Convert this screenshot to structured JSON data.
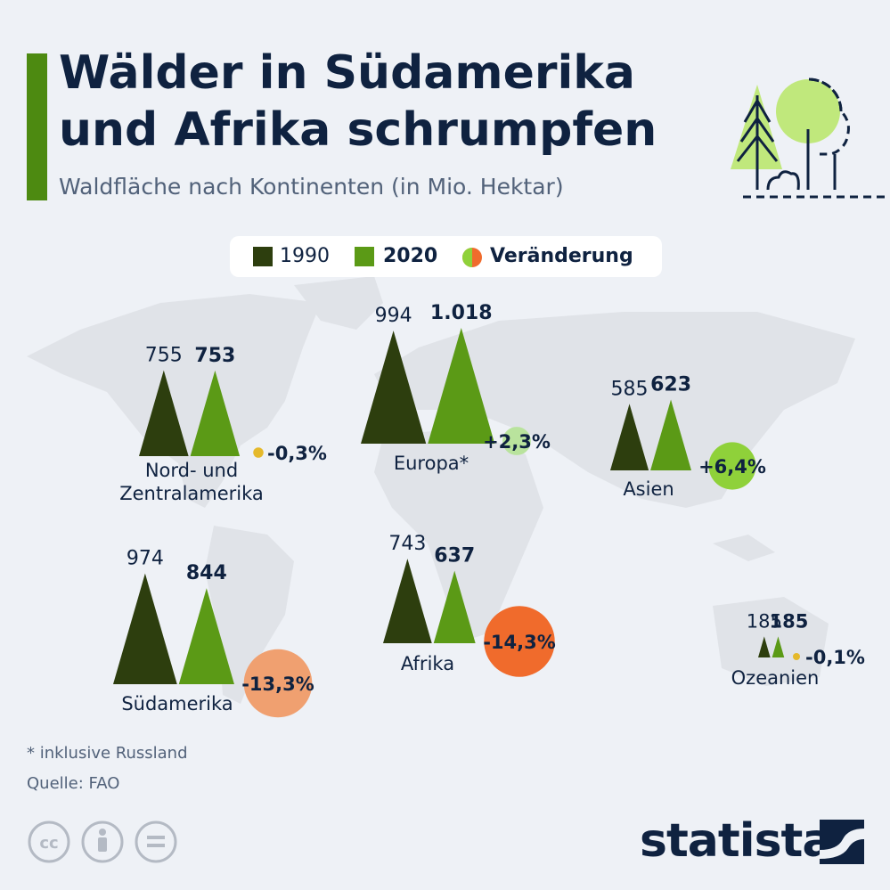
{
  "header": {
    "title": "Wälder in Südamerika und Afrika schrumpfen",
    "subtitle": "Waldfläche nach Kontinenten (in Mio. Hektar)"
  },
  "legend": {
    "label_1990": "1990",
    "label_2020": "2020",
    "label_change": "Veränderung"
  },
  "colors": {
    "series_1990": "#2d3e0e",
    "series_2020": "#5b9a16",
    "accent": "#4d8a11",
    "positive_change": [
      "#b9e39d",
      "#8fd13a"
    ],
    "negative_change": [
      "#f0a070",
      "#f06b2c"
    ],
    "small_change": "#e5b92b",
    "map": "#e0e3e8",
    "title": "#0f2240"
  },
  "chart_data": {
    "type": "bar",
    "title": "Wälder in Südamerika und Afrika schrumpfen",
    "subtitle": "Waldfläche nach Kontinenten (in Mio. Hektar)",
    "series": [
      {
        "name": "1990",
        "values": [
          755,
          994,
          585,
          974,
          743,
          185
        ]
      },
      {
        "name": "2020",
        "values": [
          753,
          1018,
          623,
          844,
          637,
          185
        ]
      }
    ],
    "categories": [
      "Nord- und Zentralamerika",
      "Europa*",
      "Asien",
      "Südamerika",
      "Afrika",
      "Ozeanien"
    ],
    "value_labels_1990": [
      "755",
      "994",
      "585",
      "974",
      "743",
      "185"
    ],
    "value_labels_2020": [
      "753",
      "1.018",
      "623",
      "844",
      "637",
      "185"
    ],
    "change_labels": [
      "-0,3%",
      "+2,3%",
      "+6,4%",
      "-13,3%",
      "-14,3%",
      "-0,1%"
    ],
    "change_percent": [
      -0.3,
      2.3,
      6.4,
      -13.3,
      -14.3,
      -0.1
    ]
  },
  "footer": {
    "footnote": "* inklusive Russland",
    "source": "Quelle: FAO",
    "logo": "statista"
  }
}
